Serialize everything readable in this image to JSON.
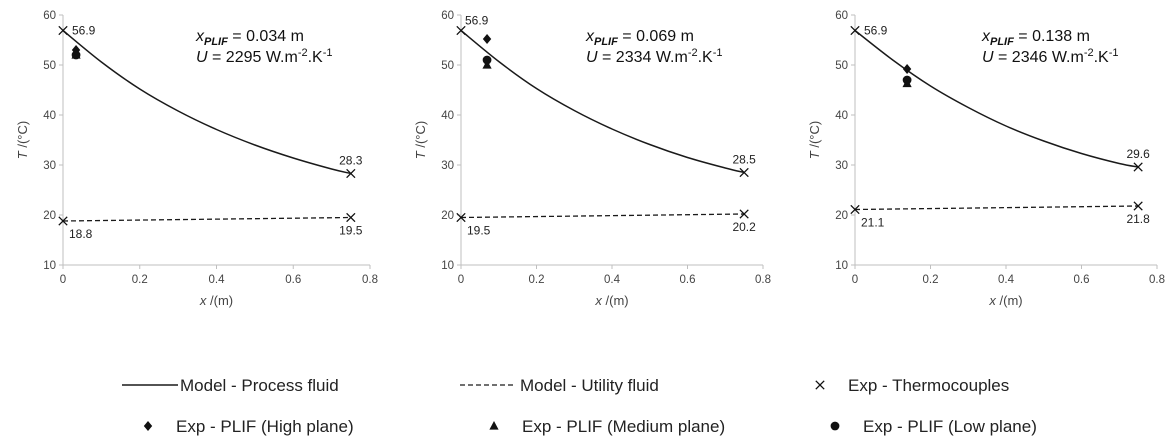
{
  "chart_data": [
    {
      "type": "line",
      "annotation": {
        "x_var": "x",
        "x_sub": "PLIF",
        "x_val": " = 0.034 m",
        "u_var": "U",
        "u_val": " = 2295 W.m",
        "u_exp1": "-2",
        "u_mid": ".K",
        "u_exp2": "-1"
      },
      "xlabel": {
        "var": "x",
        "unit": " /(m)"
      },
      "ylabel": {
        "var": "T",
        "unit": " /(°C)"
      },
      "xlim": [
        0,
        0.8
      ],
      "ylim": [
        10,
        60
      ],
      "x_ticks": [
        "0",
        "0.2",
        "0.4",
        "0.6",
        "0.8"
      ],
      "y_ticks": [
        "10",
        "20",
        "30",
        "40",
        "50",
        "60"
      ],
      "series": [
        {
          "name": "Model - Process fluid",
          "style": "solid",
          "x": [
            0,
            0.1,
            0.2,
            0.3,
            0.4,
            0.5,
            0.6,
            0.7,
            0.75
          ],
          "y": [
            56.9,
            50.6,
            45.2,
            40.8,
            37.1,
            34.0,
            31.4,
            29.2,
            28.3
          ]
        },
        {
          "name": "Model - Utility fluid",
          "style": "dashed",
          "x": [
            0,
            0.75
          ],
          "y": [
            18.8,
            19.5
          ]
        },
        {
          "name": "Exp - Thermocouples",
          "marker": "x",
          "x": [
            0,
            0.75,
            0,
            0.75
          ],
          "y": [
            56.9,
            28.3,
            18.8,
            19.5
          ]
        },
        {
          "name": "Exp - PLIF (High plane)",
          "marker": "diamond",
          "x": [
            0.034
          ],
          "y": [
            53.0
          ]
        },
        {
          "name": "Exp - PLIF (Medium plane)",
          "marker": "triangle",
          "x": [
            0.034
          ],
          "y": [
            52.0
          ]
        },
        {
          "name": "Exp - PLIF (Low plane)",
          "marker": "circle",
          "x": [
            0.034
          ],
          "y": [
            52.0
          ]
        }
      ],
      "data_labels": [
        {
          "text": "56.9",
          "x": 0,
          "y": 56.9,
          "pos": "right"
        },
        {
          "text": "28.3",
          "x": 0.75,
          "y": 28.3,
          "pos": "above"
        },
        {
          "text": "18.8",
          "x": 0,
          "y": 18.8,
          "pos": "below-right"
        },
        {
          "text": "19.5",
          "x": 0.75,
          "y": 19.5,
          "pos": "below"
        }
      ]
    },
    {
      "type": "line",
      "annotation": {
        "x_var": "x",
        "x_sub": "PLIF",
        "x_val": " = 0.069 m",
        "u_var": "U",
        "u_val": " = 2334 W.m",
        "u_exp1": "-2",
        "u_mid": ".K",
        "u_exp2": "-1"
      },
      "xlabel": {
        "var": "x",
        "unit": " /(m)"
      },
      "ylabel": {
        "var": "T",
        "unit": " /(°C)"
      },
      "xlim": [
        0,
        0.8
      ],
      "ylim": [
        10,
        60
      ],
      "x_ticks": [
        "0",
        "0.2",
        "0.4",
        "0.6",
        "0.8"
      ],
      "y_ticks": [
        "10",
        "20",
        "30",
        "40",
        "50",
        "60"
      ],
      "series": [
        {
          "name": "Model - Process fluid",
          "style": "solid",
          "x": [
            0,
            0.1,
            0.2,
            0.3,
            0.4,
            0.5,
            0.6,
            0.7,
            0.75
          ],
          "y": [
            56.9,
            50.7,
            45.3,
            40.9,
            37.2,
            34.1,
            31.5,
            29.4,
            28.5
          ]
        },
        {
          "name": "Model - Utility fluid",
          "style": "dashed",
          "x": [
            0,
            0.75
          ],
          "y": [
            19.5,
            20.2
          ]
        },
        {
          "name": "Exp - Thermocouples",
          "marker": "x",
          "x": [
            0,
            0.75,
            0,
            0.75
          ],
          "y": [
            56.9,
            28.5,
            19.5,
            20.2
          ]
        },
        {
          "name": "Exp - PLIF (High plane)",
          "marker": "diamond",
          "x": [
            0.069
          ],
          "y": [
            55.2
          ]
        },
        {
          "name": "Exp - PLIF (Medium plane)",
          "marker": "triangle",
          "x": [
            0.069
          ],
          "y": [
            50.0
          ]
        },
        {
          "name": "Exp - PLIF (Low plane)",
          "marker": "circle",
          "x": [
            0.069
          ],
          "y": [
            51.0
          ]
        }
      ],
      "data_labels": [
        {
          "text": "56.9",
          "x": 0,
          "y": 56.9,
          "pos": "above-right"
        },
        {
          "text": "28.5",
          "x": 0.75,
          "y": 28.5,
          "pos": "above"
        },
        {
          "text": "19.5",
          "x": 0,
          "y": 19.5,
          "pos": "below-right"
        },
        {
          "text": "20.2",
          "x": 0.75,
          "y": 20.2,
          "pos": "below"
        }
      ]
    },
    {
      "type": "line",
      "annotation": {
        "x_var": "x",
        "x_sub": "PLIF",
        "x_val": " = 0.138 m",
        "u_var": "U",
        "u_val": " = 2346 W.m",
        "u_exp1": "-2",
        "u_mid": ".K",
        "u_exp2": "-1"
      },
      "xlabel": {
        "var": "x",
        "unit": " /(m)"
      },
      "ylabel": {
        "var": "T",
        "unit": " /(°C)"
      },
      "xlim": [
        0,
        0.8
      ],
      "ylim": [
        10,
        60
      ],
      "x_ticks": [
        "0",
        "0.2",
        "0.4",
        "0.6",
        "0.8"
      ],
      "y_ticks": [
        "10",
        "20",
        "30",
        "40",
        "50",
        "60"
      ],
      "series": [
        {
          "name": "Model - Process fluid",
          "style": "solid",
          "x": [
            0,
            0.1,
            0.2,
            0.3,
            0.4,
            0.5,
            0.6,
            0.7,
            0.75
          ],
          "y": [
            56.9,
            51.0,
            45.8,
            41.5,
            37.8,
            34.8,
            32.3,
            30.3,
            29.6
          ]
        },
        {
          "name": "Model - Utility fluid",
          "style": "dashed",
          "x": [
            0,
            0.75
          ],
          "y": [
            21.1,
            21.8
          ]
        },
        {
          "name": "Exp - Thermocouples",
          "marker": "x",
          "x": [
            0,
            0.75,
            0,
            0.75
          ],
          "y": [
            56.9,
            29.6,
            21.1,
            21.8
          ]
        },
        {
          "name": "Exp - PLIF (High plane)",
          "marker": "diamond",
          "x": [
            0.138
          ],
          "y": [
            49.2
          ]
        },
        {
          "name": "Exp - PLIF (Medium plane)",
          "marker": "triangle",
          "x": [
            0.138
          ],
          "y": [
            46.3
          ]
        },
        {
          "name": "Exp - PLIF (Low plane)",
          "marker": "circle",
          "x": [
            0.138
          ],
          "y": [
            47.0
          ]
        }
      ],
      "data_labels": [
        {
          "text": "56.9",
          "x": 0,
          "y": 56.9,
          "pos": "right"
        },
        {
          "text": "29.6",
          "x": 0.75,
          "y": 29.6,
          "pos": "above"
        },
        {
          "text": "21.1",
          "x": 0,
          "y": 21.1,
          "pos": "below-right"
        },
        {
          "text": "21.8",
          "x": 0.75,
          "y": 21.8,
          "pos": "below"
        }
      ]
    }
  ],
  "legend": {
    "placement": "bottom",
    "items": [
      {
        "label": "Model - Process fluid",
        "kind": "solid-line"
      },
      {
        "label": "Model - Utility fluid",
        "kind": "dashed-line"
      },
      {
        "label": "Exp - Thermocouples",
        "kind": "x-marker"
      },
      {
        "label": "Exp - PLIF (High plane)",
        "kind": "diamond-marker"
      },
      {
        "label": "Exp - PLIF (Medium plane)",
        "kind": "triangle-marker"
      },
      {
        "label": "Exp - PLIF (Low plane)",
        "kind": "circle-marker"
      }
    ]
  },
  "colors": {
    "axis": "#bfbfbf",
    "line": "#1a1a1a",
    "marker": "#111111",
    "text": "#444444"
  }
}
